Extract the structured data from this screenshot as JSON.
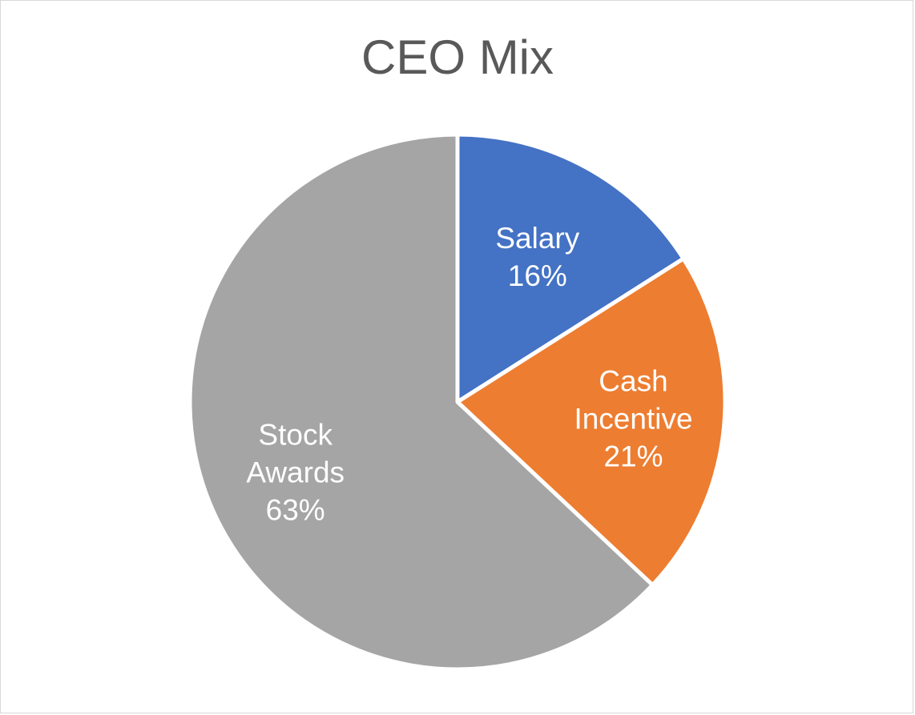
{
  "chart_data": {
    "type": "pie",
    "title": "CEO Mix",
    "start_angle_deg": 0,
    "direction": "clockwise",
    "slices": [
      {
        "label": "Salary",
        "value": 16,
        "value_label": "16%",
        "color": "#4472C4"
      },
      {
        "label": "Cash Incentive",
        "value": 21,
        "value_label": "21%",
        "color": "#ED7D31"
      },
      {
        "label": "Stock Awards",
        "value": 63,
        "value_label": "63%",
        "color": "#A5A5A5"
      }
    ],
    "legend": "none",
    "data_labels": "inside"
  }
}
